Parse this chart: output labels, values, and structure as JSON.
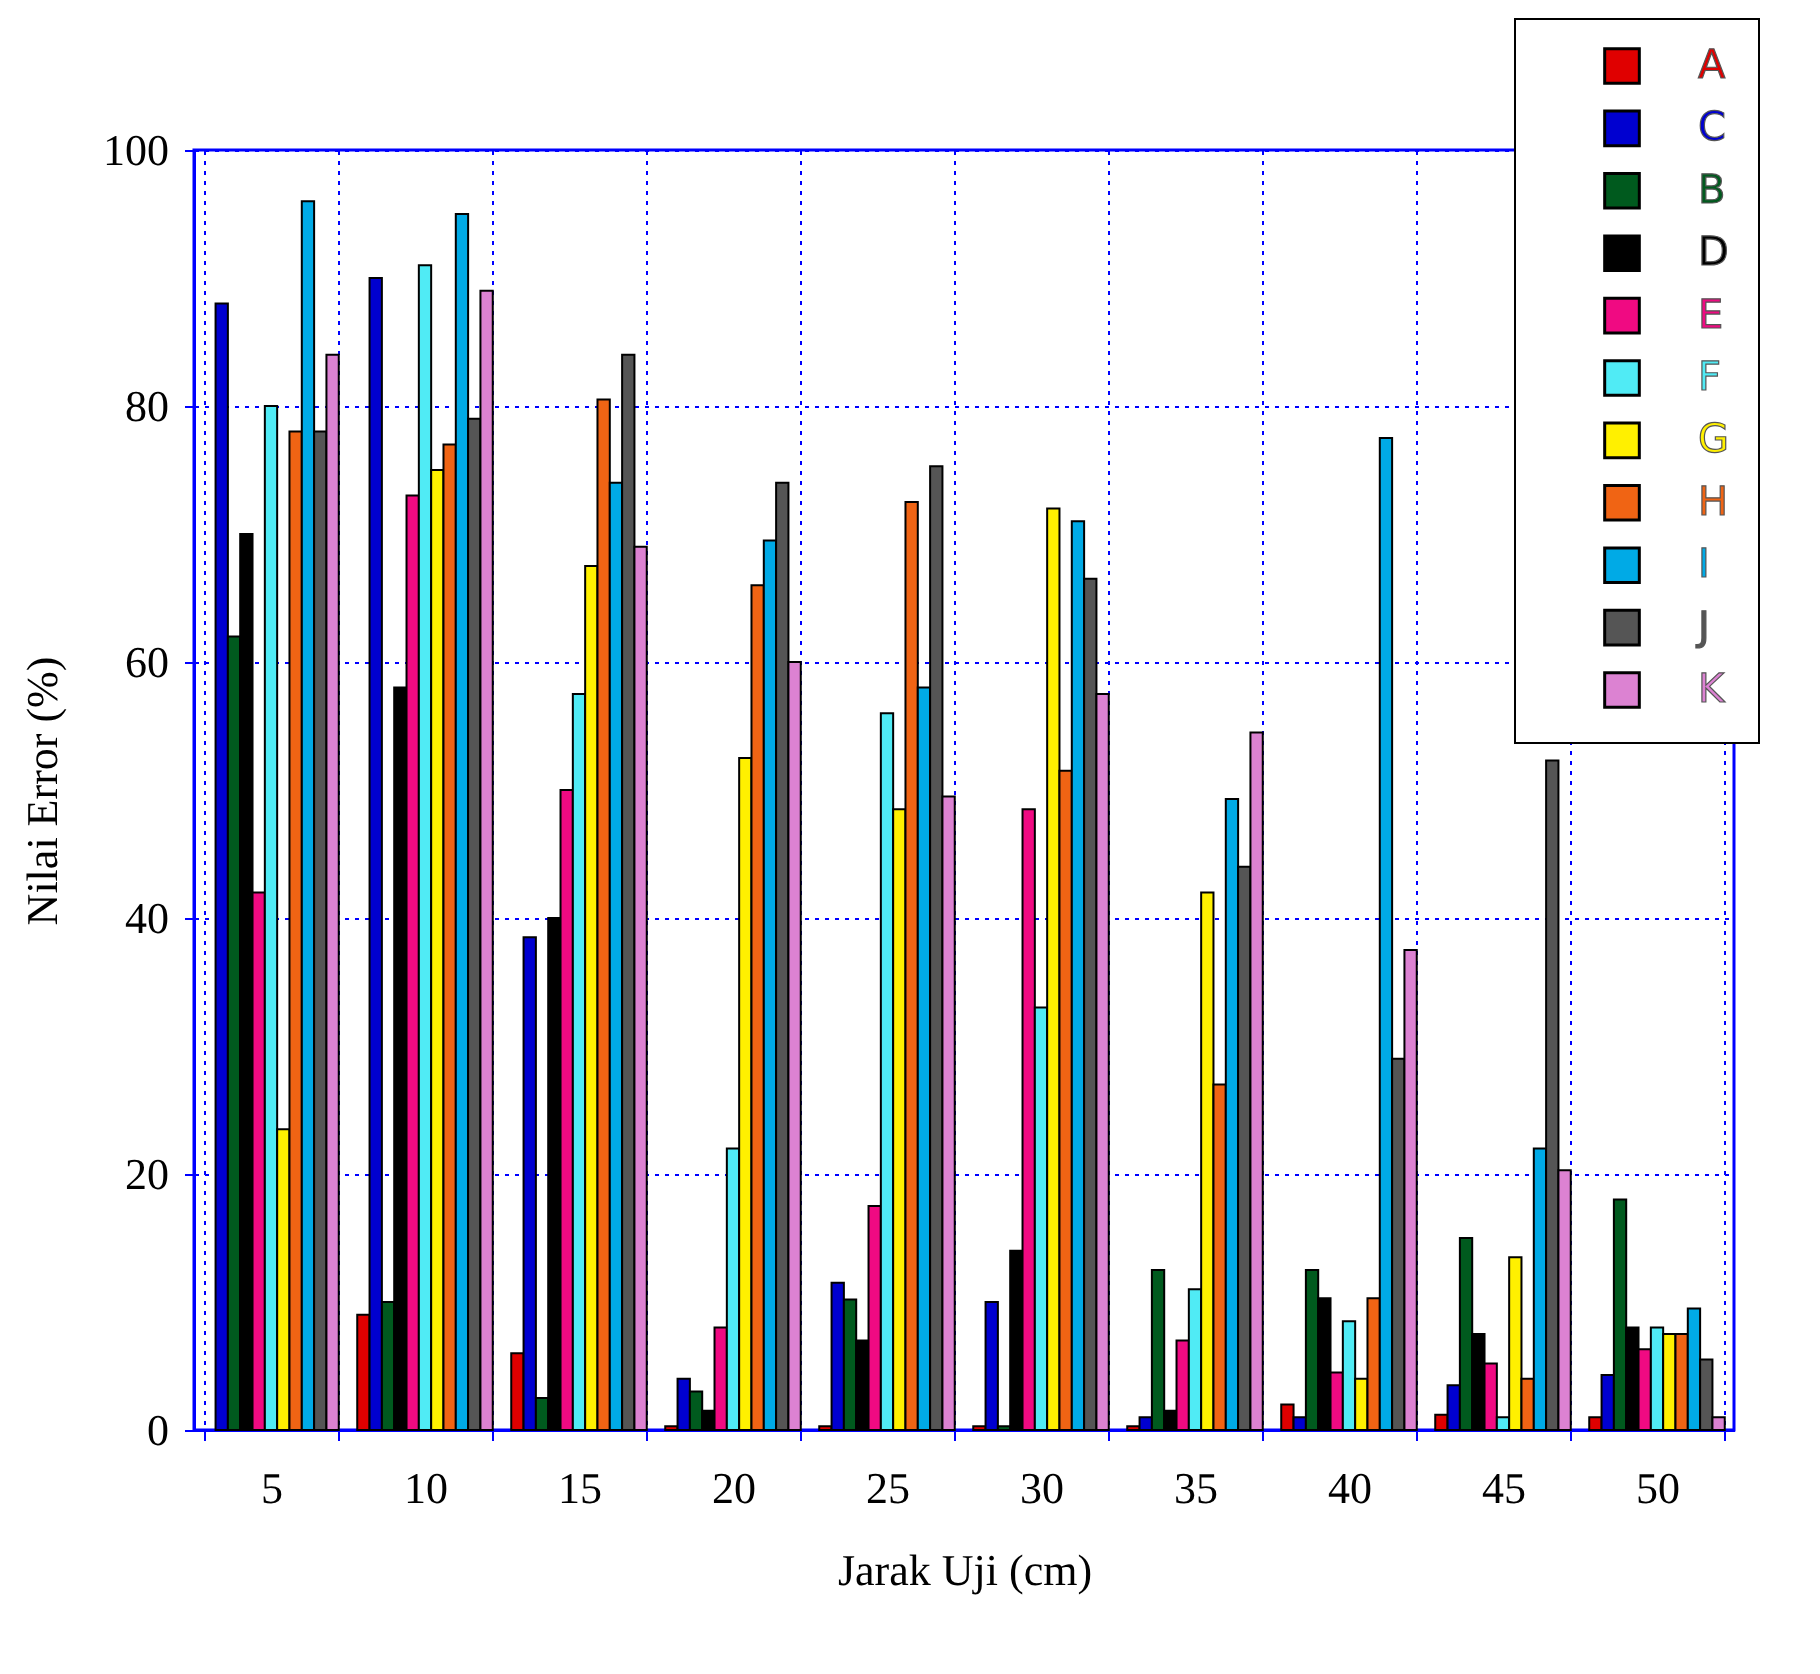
{
  "chart_data": {
    "type": "bar",
    "xlabel": "Jarak Uji (cm)",
    "ylabel": "Nilai Error (%)",
    "categories": [
      "5",
      "10",
      "15",
      "20",
      "25",
      "30",
      "35",
      "40",
      "45",
      "50"
    ],
    "ylim": [
      0,
      100
    ],
    "yticks": [
      0,
      20,
      40,
      60,
      80,
      100
    ],
    "grid": true,
    "legend": "top right",
    "series": [
      {
        "name": "A",
        "color": "#e00000",
        "values": [
          null,
          9,
          6,
          0.3,
          0.3,
          0.3,
          0.3,
          2,
          1.2,
          1
        ]
      },
      {
        "name": "C",
        "color": "#0000d0",
        "values": [
          88,
          90,
          38.5,
          4,
          11.5,
          10,
          1,
          1,
          3.5,
          4.3
        ]
      },
      {
        "name": "B",
        "color": "#005a1e",
        "values": [
          62,
          10,
          2.5,
          3,
          10.2,
          0.3,
          12.5,
          12.5,
          15,
          18
        ]
      },
      {
        "name": "D",
        "color": "#000000",
        "values": [
          70,
          58,
          40,
          1.5,
          7,
          14,
          1.5,
          10.3,
          7.5,
          8
        ]
      },
      {
        "name": "E",
        "color": "#f00a82",
        "values": [
          42,
          73,
          50,
          8,
          17.5,
          48.5,
          7,
          4.5,
          5.2,
          6.3
        ]
      },
      {
        "name": "F",
        "color": "#50ebf5",
        "values": [
          80,
          91,
          57.5,
          22,
          56,
          33,
          11,
          8.5,
          1,
          8
        ]
      },
      {
        "name": "G",
        "color": "#fff000",
        "values": [
          23.5,
          75,
          67.5,
          52.5,
          48.5,
          72,
          42,
          4,
          13.5,
          7.5
        ]
      },
      {
        "name": "H",
        "color": "#f06414",
        "values": [
          78,
          77,
          80.5,
          66,
          72.5,
          51.5,
          27,
          10.3,
          4,
          7.5
        ]
      },
      {
        "name": "I",
        "color": "#00aae6",
        "values": [
          96,
          95,
          74,
          69.5,
          58,
          71,
          49.3,
          77.5,
          22,
          9.5
        ]
      },
      {
        "name": "J",
        "color": "#555555",
        "values": [
          78,
          79,
          84,
          74,
          75.3,
          66.5,
          44,
          29,
          52.3,
          5.5
        ]
      },
      {
        "name": "K",
        "color": "#dc82d2",
        "values": [
          84,
          89,
          69,
          60,
          49.5,
          57.5,
          54.5,
          37.5,
          20.3,
          1
        ]
      }
    ]
  }
}
